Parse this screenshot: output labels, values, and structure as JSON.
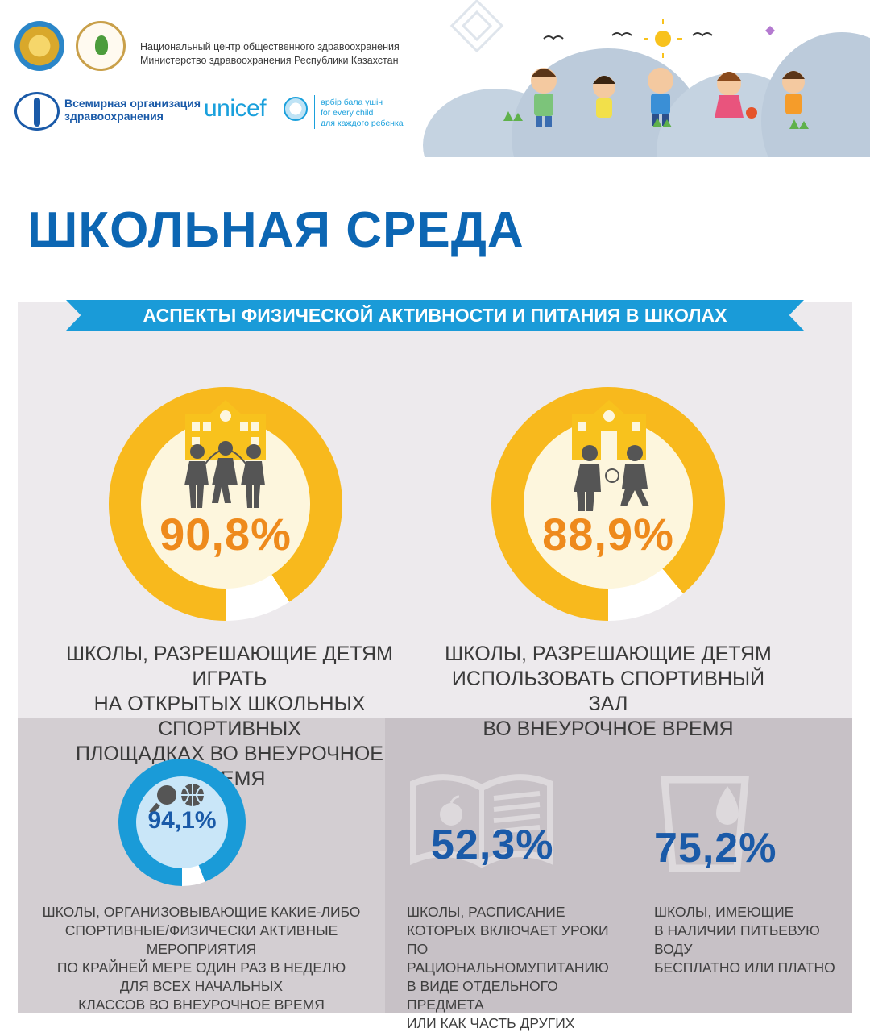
{
  "header": {
    "org_line1": "Национальный центр общественного здравоохранения",
    "org_line2": "Министерство здравоохранения Республики Казахстан",
    "who_line1": "Всемирная организация",
    "who_line2": "здравоохранения",
    "unicef_name": "unicef",
    "unicef_tag1": "әрбір бала үшін",
    "unicef_tag2": "for every child",
    "unicef_tag3": "для каждого ребенка"
  },
  "title": "ШКОЛЬНАЯ СРЕДА",
  "banner": "АСПЕКТЫ ФИЗИЧЕСКОЙ АКТИВНОСТИ И ПИТАНИЯ В ШКОЛАХ",
  "stats": [
    {
      "value": "90,8%",
      "fraction": 0.908,
      "icon": "school-children-playing-icon",
      "caption_lines": [
        "ШКОЛЫ, РАЗРЕШАЮЩИЕ ДЕТЯМ ИГРАТЬ",
        "НА ОТКРЫТЫХ ШКОЛЬНЫХ СПОРТИВНЫХ",
        "ПЛОЩАДКАХ ВО ВНЕУРОЧНОЕ ВРЕМЯ"
      ]
    },
    {
      "value": "88,9%",
      "fraction": 0.889,
      "icon": "school-children-ball-icon",
      "caption_lines": [
        "ШКОЛЫ, РАЗРЕШАЮЩИЕ ДЕТЯМ",
        "ИСПОЛЬЗОВАТЬ СПОРТИВНЫЙ ЗАЛ",
        "ВО ВНЕУРОЧНОЕ ВРЕМЯ"
      ]
    },
    {
      "value": "94,1%",
      "fraction": 0.941,
      "icon": "sports-balls-icon",
      "caption_lines": [
        "ШКОЛЫ, ОРГАНИЗОВЫВАЮЩИЕ КАКИЕ-ЛИБО",
        "СПОРТИВНЫЕ/ФИЗИЧЕСКИ АКТИВНЫЕ МЕРОПРИЯТИЯ",
        "ПО КРАЙНЕЙ МЕРЕ ОДИН РАЗ В НЕДЕЛЮ",
        "ДЛЯ ВСЕХ НАЧАЛЬНЫХ",
        "КЛАССОВ ВО ВНЕУРОЧНОЕ ВРЕМЯ"
      ]
    },
    {
      "value": "52,3%",
      "icon": "book-apple-icon",
      "caption_lines": [
        "ШКОЛЫ, РАСПИСАНИЕ",
        "КОТОРЫХ ВКЛЮЧАЕТ УРОКИ",
        "ПО РАЦИОНАЛЬНОМУПИТАНИЮ",
        "В ВИДЕ ОТДЕЛЬНОГО ПРЕДМЕТА",
        "ИЛИ КАК ЧАСТЬ ДРУГИХ УРОКОВ"
      ]
    },
    {
      "value": "75,2%",
      "icon": "water-glass-icon",
      "caption_lines": [
        "ШКОЛЫ, ИМЕЮЩИЕ",
        "В НАЛИЧИИ ПИТЬЕВУЮ ВОДУ",
        "БЕСПЛАТНО ИЛИ ПЛАТНО"
      ]
    }
  ],
  "colors": {
    "title_blue": "#0c66b3",
    "banner_blue": "#1a9bd8",
    "donut_yellow": "#f8b91d",
    "donut_remainder": "#ffffff",
    "percent_orange": "#ee8a1c",
    "percent_blue": "#1a5aa8",
    "donut_blue": "#1a9bd8"
  }
}
